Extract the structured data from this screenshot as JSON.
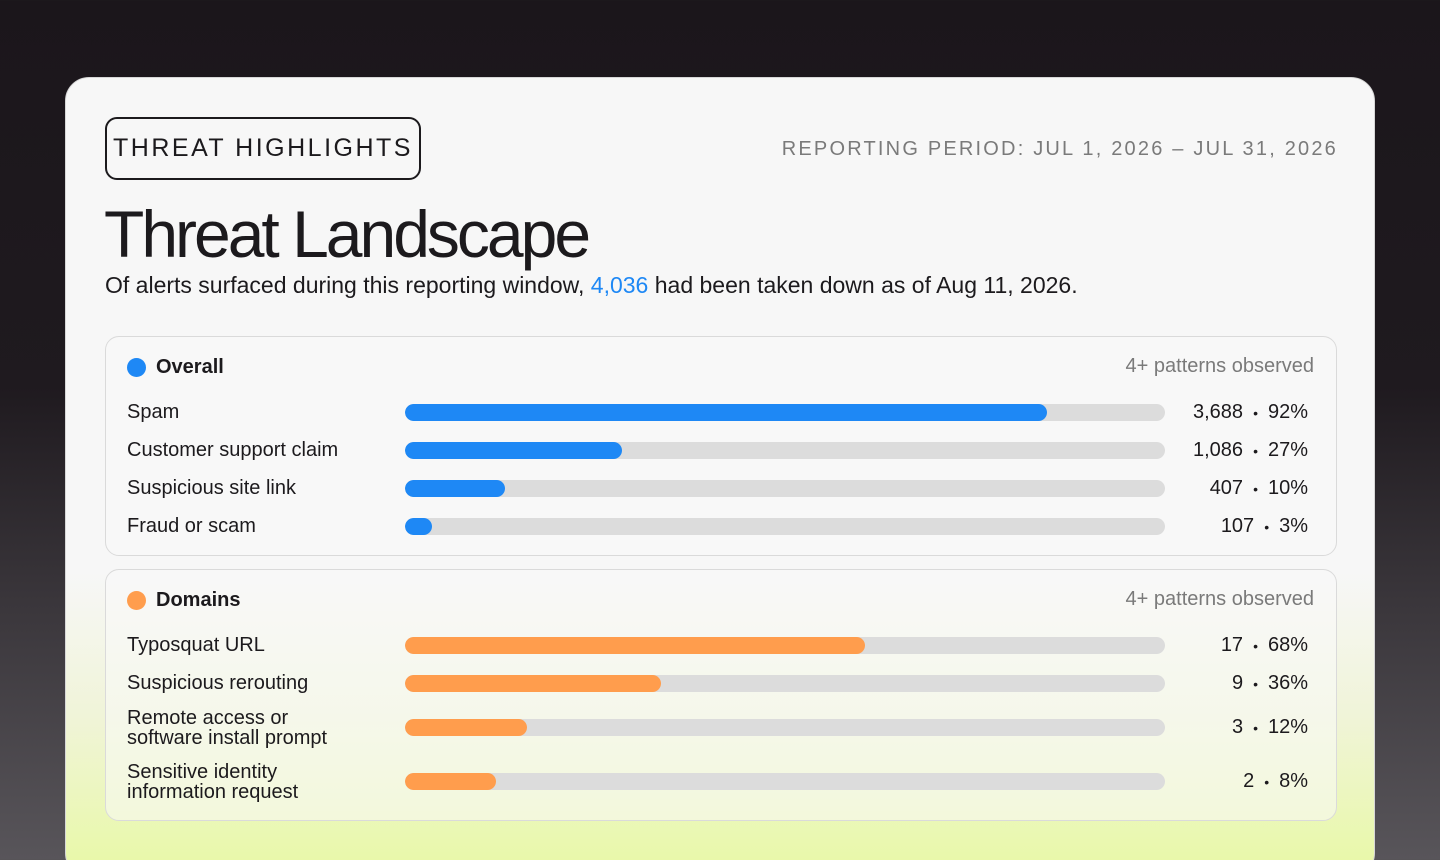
{
  "badge": "THREAT HIGHLIGHTS",
  "period": "REPORTING PERIOD: JUL 1, 2026 – JUL 31, 2026",
  "title": "Threat Landscape",
  "subtitle": {
    "before": "Of alerts surfaced during this reporting window, ",
    "highlight": "4,036",
    "after": " had been taken down as of Aug 11, 2026."
  },
  "colors": {
    "blue": "#1e88f5",
    "orange": "#ff9d4d",
    "track": "#dcdcdc"
  },
  "panels": [
    {
      "title": "Overall",
      "patterns": "4+ patterns observed",
      "color": "#1e88f5",
      "rows": [
        {
          "label": "Spam",
          "count": "3,688",
          "percent": "92%",
          "fill": 0.845
        },
        {
          "label": "Customer support claim",
          "count": "1,086",
          "percent": "27%",
          "fill": 0.285
        },
        {
          "label": "Suspicious site link",
          "count": "407",
          "percent": "10%",
          "fill": 0.132
        },
        {
          "label": "Fraud or scam",
          "count": "107",
          "percent": "3%",
          "fill": 0.035
        }
      ]
    },
    {
      "title": "Domains",
      "patterns": "4+ patterns observed",
      "color": "#ff9d4d",
      "rows": [
        {
          "label": "Typosquat URL",
          "count": "17",
          "percent": "68%",
          "fill": 0.605
        },
        {
          "label": "Suspicious rerouting",
          "count": "9",
          "percent": "36%",
          "fill": 0.337
        },
        {
          "label": "Remote access or\nsoftware install prompt",
          "count": "3",
          "percent": "12%",
          "fill": 0.16
        },
        {
          "label": "Sensitive identity\ninformation request",
          "count": "2",
          "percent": "8%",
          "fill": 0.12
        }
      ]
    }
  ]
}
